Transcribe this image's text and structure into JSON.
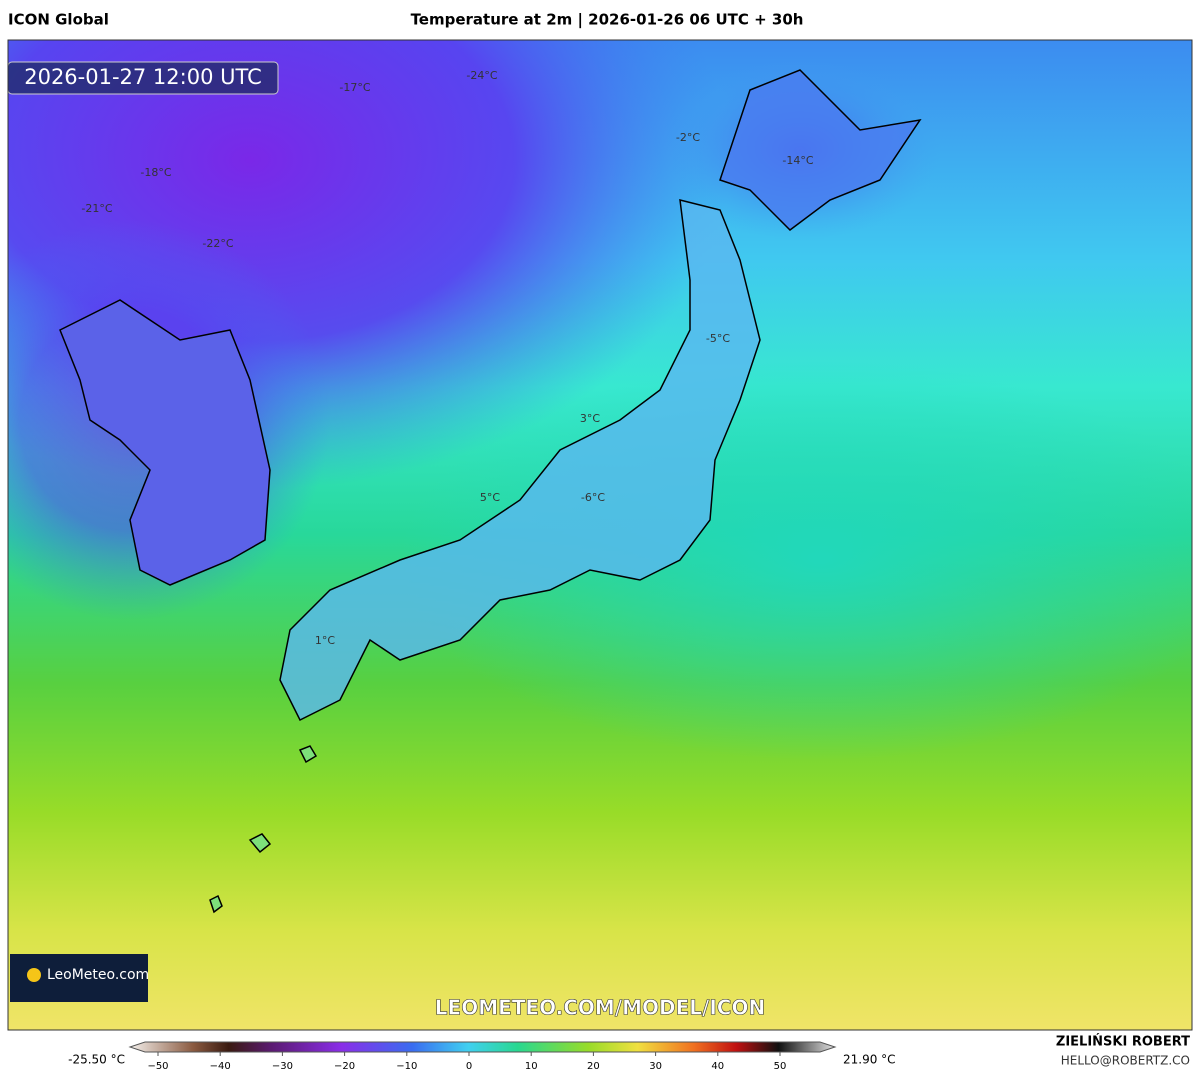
{
  "header": {
    "model": "ICON Global",
    "title": "Temperature at 2m | 2026-01-26 06 UTC + 30h"
  },
  "map": {
    "valid_time": "2026-01-27 12:00 UTC",
    "labels": [
      "-17°C",
      "-24°C",
      "-2°C",
      "-14°C",
      "-18°C",
      "-21°C",
      "-22°C",
      "-5°C",
      "3°C",
      "5°C",
      "-6°C",
      "1°C"
    ],
    "logo": "LeoMeteo.com",
    "watermark": "LEOMETEO.COM/MODEL/ICON"
  },
  "colorbar": {
    "min_label": "-25.50 °C",
    "max_label": "21.90 °C",
    "ticks": [
      "−50",
      "−40",
      "−30",
      "−20",
      "−10",
      "0",
      "10",
      "20",
      "30",
      "40",
      "50"
    ]
  },
  "footer": {
    "author": "ZIELIŃSKI ROBERT",
    "email": "HELLO@ROBERTZ.CO"
  }
}
